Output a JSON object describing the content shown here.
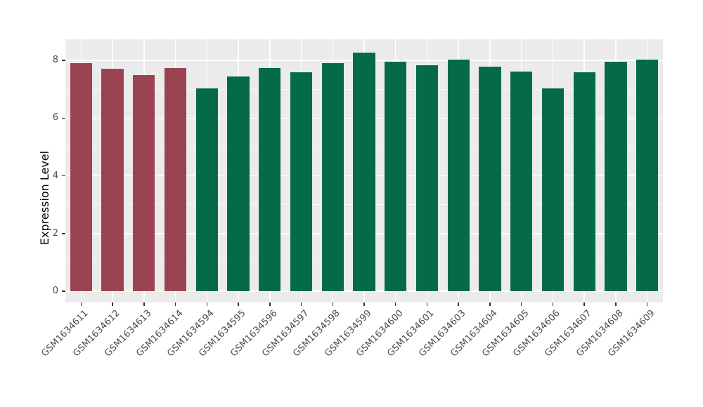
{
  "figure": {
    "background": "#FFFFFF",
    "panel_background": "#EBEBEB",
    "gridline_color": "#FFFFFF",
    "tick_label_color": "#4D4D4D",
    "axis_title_color": "#000000"
  },
  "chart_data": {
    "type": "bar",
    "title": "",
    "xlabel": "",
    "ylabel": "Expression Level",
    "categories": [
      "GSM1634611",
      "GSM1634612",
      "GSM1634613",
      "GSM1634614",
      "GSM1634594",
      "GSM1634595",
      "GSM1634596",
      "GSM1634597",
      "GSM1634598",
      "GSM1634599",
      "GSM1634600",
      "GSM1634601",
      "GSM1634603",
      "GSM1634604",
      "GSM1634605",
      "GSM1634606",
      "GSM1634607",
      "GSM1634608",
      "GSM1634609"
    ],
    "values": [
      7.9,
      7.7,
      7.5,
      7.74,
      7.03,
      7.45,
      7.74,
      7.58,
      7.9,
      8.27,
      7.95,
      7.83,
      8.02,
      7.78,
      7.62,
      7.02,
      7.59,
      7.95,
      8.02
    ],
    "groups": [
      0,
      0,
      0,
      0,
      1,
      1,
      1,
      1,
      1,
      1,
      1,
      1,
      1,
      1,
      1,
      1,
      1,
      1,
      1
    ],
    "group_colors": [
      "#9B4451",
      "#046B46"
    ],
    "ylim": [
      0,
      8.72
    ],
    "yticks_major": [
      0,
      2,
      4,
      6,
      8
    ],
    "yticks_minor": [
      1,
      3,
      5,
      7
    ],
    "grid": "white major+minor horizontal, white vertical at category centers, on grey panel",
    "legend_position": "none",
    "x_tick_label_rotation_deg": 45
  }
}
